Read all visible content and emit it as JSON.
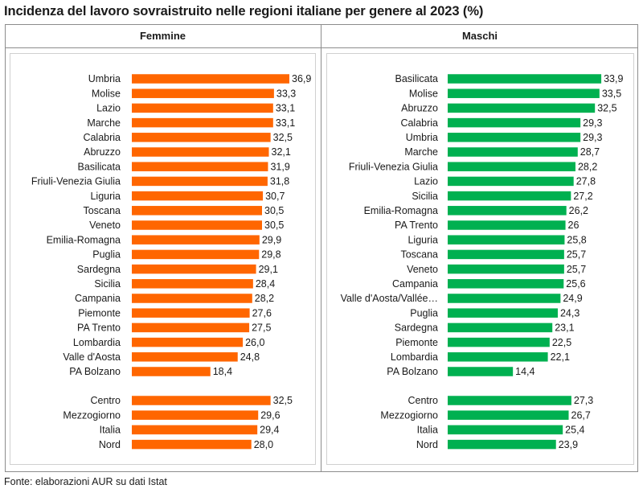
{
  "title": "Incidenza del lavoro sovraistruito nelle regioni italiane per genere al 2023 (%)",
  "source": "Fonte: elaborazioni AUR su dati Istat",
  "colors": {
    "female": "#ff6600",
    "male": "#00b050"
  },
  "chart_data": [
    {
      "type": "bar",
      "orientation": "horizontal",
      "title": "Femmine",
      "categories": [
        "Umbria",
        "Molise",
        "Lazio",
        "Marche",
        "Calabria",
        "Abruzzo",
        "Basilicata",
        "Friuli-Venezia Giulia",
        "Liguria",
        "Toscana",
        "Veneto",
        "Emilia-Romagna",
        "Puglia",
        "Sardegna",
        "Sicilia",
        "Campania",
        "Piemonte",
        "PA Trento",
        "Lombardia",
        "Valle d'Aosta",
        "PA Bolzano"
      ],
      "values": [
        36.9,
        33.3,
        33.1,
        33.1,
        32.5,
        32.1,
        31.9,
        31.8,
        30.7,
        30.5,
        30.5,
        29.9,
        29.8,
        29.1,
        28.4,
        28.2,
        27.6,
        27.5,
        26.0,
        24.8,
        18.4
      ],
      "value_labels": [
        "36,9",
        "33,3",
        "33,1",
        "33,1",
        "32,5",
        "32,1",
        "31,9",
        "31,8",
        "30,7",
        "30,5",
        "30,5",
        "29,9",
        "29,8",
        "29,1",
        "28,4",
        "28,2",
        "27,6",
        "27,5",
        "26,0",
        "24,8",
        "18,4"
      ],
      "aggregate_categories": [
        "Centro",
        "Mezzogiorno",
        "Italia",
        "Nord"
      ],
      "aggregate_values": [
        32.5,
        29.6,
        29.4,
        28.0
      ],
      "aggregate_value_labels": [
        "32,5",
        "29,6",
        "29,4",
        "28,0"
      ]
    },
    {
      "type": "bar",
      "orientation": "horizontal",
      "title": "Maschi",
      "categories": [
        "Basilicata",
        "Molise",
        "Abruzzo",
        "Calabria",
        "Umbria",
        "Marche",
        "Friuli-Venezia Giulia",
        "Lazio",
        "Sicilia",
        "Emilia-Romagna",
        "PA Trento",
        "Liguria",
        "Toscana",
        "Veneto",
        "Campania",
        "Valle d'Aosta/Vallée…",
        "Puglia",
        "Sardegna",
        "Piemonte",
        "Lombardia",
        "PA Bolzano"
      ],
      "values": [
        33.9,
        33.5,
        32.5,
        29.3,
        29.3,
        28.7,
        28.2,
        27.8,
        27.2,
        26.2,
        26,
        25.8,
        25.7,
        25.7,
        25.6,
        24.9,
        24.3,
        23.1,
        22.5,
        22.1,
        14.4
      ],
      "value_labels": [
        "33,9",
        "33,5",
        "32,5",
        "29,3",
        "29,3",
        "28,7",
        "28,2",
        "27,8",
        "27,2",
        "26,2",
        "26",
        "25,8",
        "25,7",
        "25,7",
        "25,6",
        "24,9",
        "24,3",
        "23,1",
        "22,5",
        "22,1",
        "14,4"
      ],
      "aggregate_categories": [
        "Centro",
        "Mezzogiorno",
        "Italia",
        "Nord"
      ],
      "aggregate_values": [
        27.3,
        26.7,
        25.4,
        23.9
      ],
      "aggregate_value_labels": [
        "27,3",
        "26,7",
        "25,4",
        "23,9"
      ]
    }
  ]
}
